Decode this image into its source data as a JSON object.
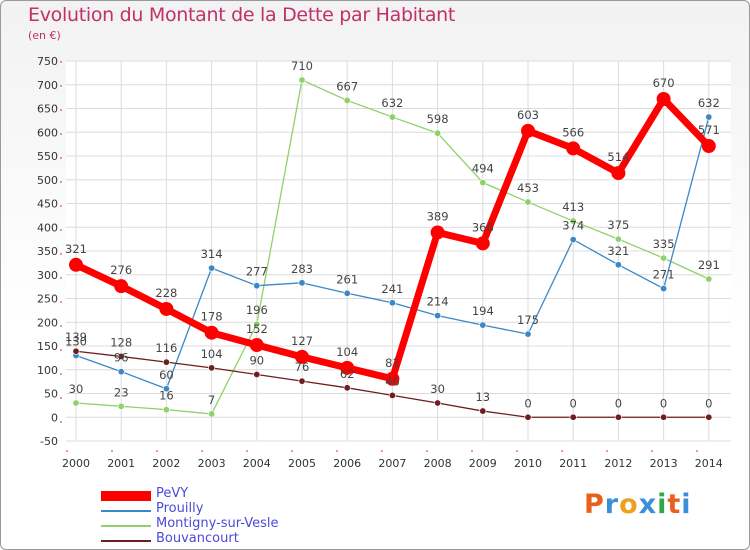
{
  "header": {
    "title": "Evolution du Montant de la Dette par Habitant",
    "subtitle": "(en €)"
  },
  "logo": {
    "text": "Proxiti",
    "colors": [
      "#e8601c",
      "#3a8fd8",
      "#f0a020",
      "#3a8fd8",
      "#2fa84a",
      "#e8601c",
      "#3a8fd8"
    ]
  },
  "chart_data": {
    "type": "line",
    "x": [
      2000,
      2001,
      2002,
      2003,
      2004,
      2005,
      2006,
      2007,
      2008,
      2009,
      2010,
      2011,
      2012,
      2013,
      2014
    ],
    "ylim": [
      -50,
      750
    ],
    "yticks": [
      -50,
      0,
      50,
      100,
      150,
      200,
      250,
      300,
      350,
      400,
      450,
      500,
      550,
      600,
      650,
      700,
      750
    ],
    "grid": true,
    "legend_position": "bottom-left",
    "series": [
      {
        "name": "PeVY",
        "color": "#ff0000",
        "values": [
          321,
          276,
          228,
          178,
          152,
          127,
          104,
          81,
          389,
          366,
          603,
          566,
          514,
          670,
          571
        ]
      },
      {
        "name": "Prouilly",
        "color": "#3a88c8",
        "values": [
          130,
          96,
          60,
          314,
          277,
          283,
          261,
          241,
          214,
          194,
          175,
          374,
          321,
          271,
          632
        ]
      },
      {
        "name": "Montigny-sur-Vesle",
        "color": "#8fd16a",
        "values": [
          30,
          23,
          16,
          7,
          196,
          710,
          667,
          632,
          598,
          494,
          453,
          413,
          375,
          335,
          291
        ]
      },
      {
        "name": "Bouvancourt",
        "color": "#6e1e1e",
        "values": [
          139,
          128,
          116,
          104,
          90,
          76,
          62,
          46,
          30,
          13,
          0,
          0,
          0,
          0,
          0
        ]
      }
    ]
  }
}
